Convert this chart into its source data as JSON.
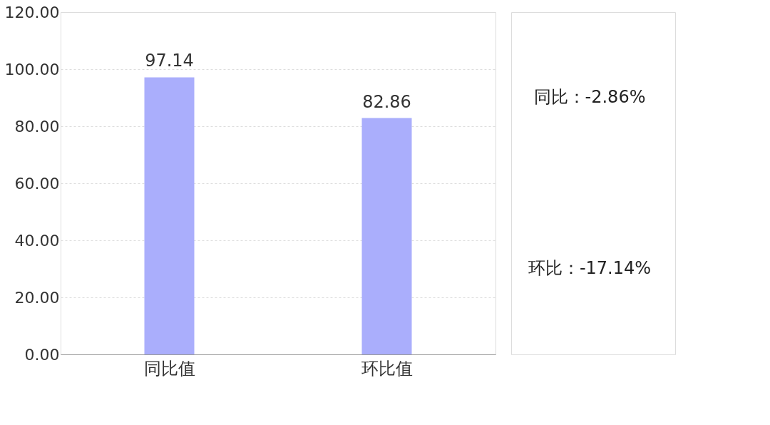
{
  "chart_data": {
    "type": "bar",
    "categories": [
      "同比值",
      "环比值"
    ],
    "values": [
      97.14,
      82.86
    ],
    "color": "#aaaefc",
    "data_labels": true,
    "ylim": [
      0,
      120
    ],
    "yticks": [
      {
        "value": 0,
        "label": "0.00"
      },
      {
        "value": 20,
        "label": "20.00"
      },
      {
        "value": 40,
        "label": "40.00"
      },
      {
        "value": 60,
        "label": "60.00"
      },
      {
        "value": 80,
        "label": "80.00"
      },
      {
        "value": 100,
        "label": "100.00"
      },
      {
        "value": 120,
        "label": "120.00"
      }
    ],
    "grid": "y",
    "annotations": [
      "同比：-2.86%",
      "环比：-17.14%"
    ]
  }
}
